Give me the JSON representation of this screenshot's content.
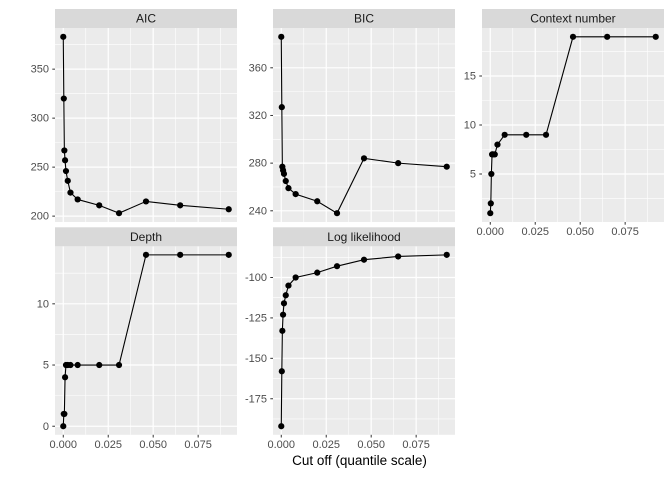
{
  "chart_data": {
    "type": "line",
    "title": "",
    "xlabel": "Cut off (quantile scale)",
    "grid": true,
    "legend": null,
    "x": [
      0,
      0.0003,
      0.0006,
      0.001,
      0.0015,
      0.0025,
      0.004,
      0.008,
      0.02,
      0.031,
      0.046,
      0.065,
      0.092
    ],
    "xlim": [
      -0.0046,
      0.0966
    ],
    "x_ticks": [
      0,
      0.025,
      0.05,
      0.075
    ],
    "x_tick_labels": [
      "0.000",
      "0.025",
      "0.050",
      "0.075"
    ],
    "facets": [
      {
        "title": "AIC",
        "row": 0,
        "col": 0,
        "x_axis": false,
        "y_ticks": [
          200,
          250,
          300,
          350
        ],
        "values": [
          383,
          320,
          267,
          257,
          246,
          236,
          224,
          217,
          211,
          203,
          215,
          211,
          207
        ]
      },
      {
        "title": "BIC",
        "row": 0,
        "col": 1,
        "x_axis": false,
        "y_ticks": [
          240,
          280,
          320,
          360
        ],
        "values": [
          386,
          327,
          277,
          274,
          271,
          265,
          259,
          254,
          248,
          238,
          284,
          280,
          277
        ]
      },
      {
        "title": "Context number",
        "row": 0,
        "col": 2,
        "x_axis": true,
        "y_ticks": [
          5,
          10,
          15
        ],
        "values": [
          1,
          2,
          5,
          7,
          7,
          7,
          8,
          9,
          9,
          9,
          19,
          19,
          19
        ]
      },
      {
        "title": "Depth",
        "row": 1,
        "col": 0,
        "x_axis": true,
        "y_ticks": [
          0,
          5,
          10
        ],
        "values": [
          0,
          1,
          1,
          4,
          5,
          5,
          5,
          5,
          5,
          5,
          14,
          14,
          14
        ]
      },
      {
        "title": "Log likelihood",
        "row": 1,
        "col": 1,
        "x_axis": true,
        "y_ticks": [
          -175,
          -150,
          -125,
          -100
        ],
        "values": [
          -192,
          -158,
          -133,
          -123,
          -116,
          -111,
          -105,
          -100,
          -97,
          -93,
          -89,
          -87,
          -86
        ]
      }
    ],
    "colors": {
      "background": "#FFFFFF",
      "panel_bg": "#EBEBEB",
      "strip_bg": "#D9D9D9",
      "grid_line": "#FFFFFF",
      "data_line": "#000000",
      "point": "#000000",
      "axis_text": "#4D4D4D",
      "strip_text": "#1A1A1A",
      "tick_mark": "#333333"
    }
  }
}
